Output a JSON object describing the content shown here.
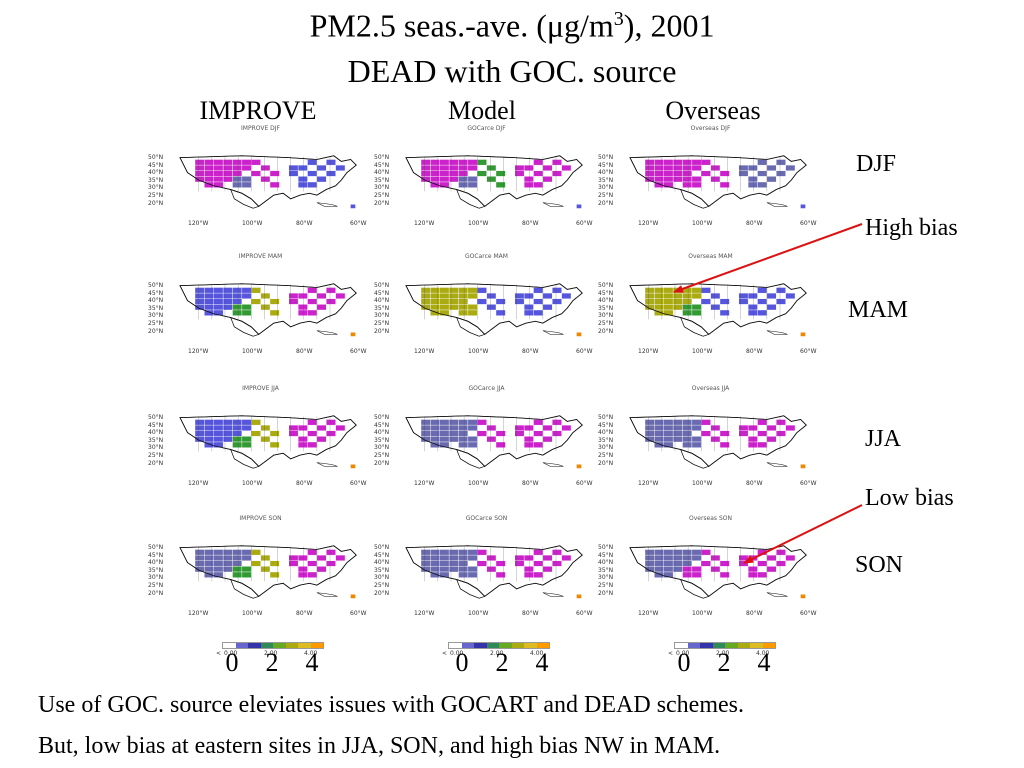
{
  "title_line1_pre": "PM2.5 seas.-ave. (μg/m",
  "title_line1_sup": "3",
  "title_line1_post": "), 2001",
  "title_line2": "DEAD with GOC. source",
  "columns": [
    "IMPROVE",
    "Model",
    "Overseas"
  ],
  "panel_titles": [
    [
      "IMPROVE DJF",
      "GOCarce DJF",
      "Overseas DJF"
    ],
    [
      "IMPROVE MAM",
      "GOCarce MAM",
      "Overseas MAM"
    ],
    [
      "IMPROVE JJA",
      "GOCarce JJA",
      "Overseas JJA"
    ],
    [
      "IMPROVE SON",
      "GOCarce SON",
      "Overseas SON"
    ]
  ],
  "lat_labels": [
    "50°N",
    "45°N",
    "40°N",
    "35°N",
    "30°N",
    "25°N",
    "20°N"
  ],
  "lon_labels": [
    "120°W",
    "100°W",
    "80°W",
    "60°W"
  ],
  "seasons": [
    "DJF",
    "MAM",
    "JJA",
    "SON"
  ],
  "annotations": {
    "high_bias": "High bias",
    "low_bias": "Low bias"
  },
  "colorbar": {
    "less_than": "<",
    "ticks": [
      "0.00",
      "2.00",
      "4.00"
    ],
    "colors": [
      "#ffffff",
      "#6666cc",
      "#3333aa",
      "#2e8b57",
      "#66aa22",
      "#aaaa11",
      "#ddbb22",
      "#ff9900"
    ]
  },
  "scale_labels": [
    "0",
    "2",
    "4"
  ],
  "footer": {
    "line1": "Use of GOC. source eleviates issues with GOCART and DEAD schemes.",
    "line2": "But, low bias at eastern sites in JJA, SON, and high bias NW in MAM."
  },
  "arrow_color": "#dd1111",
  "dominant_colors": {
    "magenta": "#cc22cc",
    "slate_blue": "#6a6ab0",
    "blue": "#5555dd",
    "green": "#339933",
    "olive": "#aaaa11",
    "orange": "#ee8800"
  }
}
